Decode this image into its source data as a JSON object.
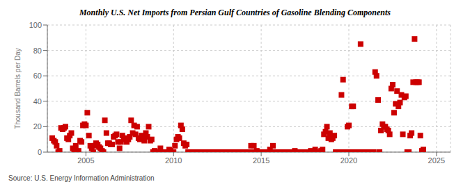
{
  "chart_data": {
    "type": "scatter",
    "title": "Monthly U.S. Net Imports from Persian Gulf Countries of Gasoline Blending Components",
    "ylabel": "Thousand Barrels per Day",
    "annotation": "Source: U.S. Energy Information Administration",
    "color": "#cc0000",
    "marker": "square",
    "grid": true,
    "ylim": [
      0,
      100
    ],
    "yticks": [
      0,
      20,
      40,
      60,
      80,
      100
    ],
    "xlim": [
      2002.8,
      2025.8
    ],
    "xticks": [
      2005,
      2010,
      2015,
      2020,
      2025
    ],
    "x": [
      2003.08,
      2003.17,
      2003.25,
      2003.33,
      2003.42,
      2003.5,
      2003.58,
      2003.67,
      2003.75,
      2003.83,
      2003.92,
      2004.0,
      2004.08,
      2004.17,
      2004.25,
      2004.33,
      2004.42,
      2004.5,
      2004.58,
      2004.67,
      2004.75,
      2004.83,
      2004.92,
      2005.0,
      2005.08,
      2005.17,
      2005.25,
      2005.33,
      2005.42,
      2005.5,
      2005.58,
      2005.67,
      2005.75,
      2005.83,
      2005.92,
      2006.0,
      2006.08,
      2006.17,
      2006.25,
      2006.33,
      2006.42,
      2006.5,
      2006.58,
      2006.67,
      2006.75,
      2006.83,
      2006.92,
      2007.0,
      2007.08,
      2007.17,
      2007.25,
      2007.33,
      2007.42,
      2007.5,
      2007.58,
      2007.67,
      2007.75,
      2007.83,
      2007.92,
      2008.0,
      2008.08,
      2008.17,
      2008.25,
      2008.33,
      2008.42,
      2008.5,
      2008.58,
      2008.67,
      2008.75,
      2008.83,
      2008.92,
      2009.0,
      2009.08,
      2009.17,
      2009.25,
      2009.33,
      2009.42,
      2009.5,
      2009.58,
      2009.67,
      2009.75,
      2009.83,
      2009.92,
      2010.0,
      2010.08,
      2010.17,
      2010.25,
      2010.33,
      2010.42,
      2010.5,
      2010.58,
      2010.67,
      2010.75,
      2010.83,
      2010.92,
      2011.0,
      2011.08,
      2011.17,
      2011.25,
      2011.33,
      2011.42,
      2011.5,
      2011.58,
      2011.67,
      2011.75,
      2011.83,
      2011.92,
      2012.0,
      2012.08,
      2012.17,
      2012.25,
      2012.33,
      2012.42,
      2012.5,
      2012.58,
      2012.67,
      2012.75,
      2012.83,
      2012.92,
      2013.0,
      2013.08,
      2013.17,
      2013.25,
      2013.33,
      2013.42,
      2013.5,
      2013.58,
      2013.67,
      2013.75,
      2013.83,
      2013.92,
      2014.0,
      2014.08,
      2014.17,
      2014.25,
      2014.33,
      2014.42,
      2014.5,
      2014.58,
      2014.67,
      2014.75,
      2014.83,
      2014.92,
      2015.0,
      2015.08,
      2015.17,
      2015.25,
      2015.33,
      2015.42,
      2015.5,
      2015.58,
      2015.67,
      2015.75,
      2015.83,
      2015.92,
      2016.0,
      2016.08,
      2016.17,
      2016.25,
      2016.33,
      2016.42,
      2016.5,
      2016.58,
      2016.67,
      2016.75,
      2016.83,
      2016.92,
      2017.0,
      2017.08,
      2017.17,
      2017.25,
      2017.33,
      2017.42,
      2017.5,
      2017.58,
      2017.67,
      2017.75,
      2017.83,
      2017.92,
      2018.0,
      2018.08,
      2018.17,
      2018.25,
      2018.33,
      2018.42,
      2018.5,
      2018.58,
      2018.67,
      2018.75,
      2018.83,
      2018.92,
      2019.0,
      2019.08,
      2019.17,
      2019.25,
      2019.33,
      2019.42,
      2019.5,
      2019.58,
      2019.67,
      2019.75,
      2019.83,
      2019.92,
      2020.0,
      2020.08,
      2020.17,
      2020.25,
      2020.33,
      2020.42,
      2020.5,
      2020.58,
      2020.67,
      2020.75,
      2020.83,
      2020.92,
      2021.0,
      2021.08,
      2021.17,
      2021.25,
      2021.33,
      2021.42,
      2021.5,
      2021.58,
      2021.67,
      2021.75,
      2021.83,
      2021.92,
      2022.0,
      2022.08,
      2022.17,
      2022.25,
      2022.33,
      2022.42,
      2022.5,
      2022.58,
      2022.67,
      2022.75,
      2022.83,
      2022.92,
      2023.0,
      2023.08,
      2023.17,
      2023.25,
      2023.33,
      2023.42,
      2023.5,
      2023.58,
      2023.67,
      2023.75,
      2023.83,
      2023.92,
      2024.0,
      2024.08,
      2024.17,
      2024.25
    ],
    "values": [
      11,
      9,
      8,
      5,
      0,
      1,
      19,
      18,
      19,
      20,
      11,
      10,
      13,
      15,
      3,
      2,
      5,
      0,
      1,
      9,
      8,
      21,
      22,
      21,
      31,
      13,
      5,
      3,
      0,
      5,
      7,
      6,
      4,
      3,
      1,
      0,
      25,
      15,
      7,
      7,
      6,
      6,
      12,
      13,
      14,
      8,
      3,
      8,
      13,
      10,
      11,
      8,
      10,
      12,
      25,
      15,
      21,
      14,
      20,
      11,
      10,
      13,
      11,
      9,
      15,
      12,
      20,
      9,
      10,
      0,
      1,
      0,
      0,
      0,
      3,
      0,
      0,
      0,
      0,
      0,
      2,
      1,
      0,
      0,
      5,
      10,
      12,
      11,
      21,
      18,
      7,
      5,
      6,
      0,
      0,
      0,
      0,
      0,
      0,
      0,
      0,
      0,
      0,
      0,
      0,
      0,
      0,
      0,
      0,
      0,
      0,
      0,
      0,
      0,
      0,
      0,
      0,
      0,
      0,
      0,
      0,
      0,
      0,
      0,
      0,
      0,
      0,
      0,
      0,
      0,
      0,
      0,
      0,
      0,
      0,
      0,
      5,
      0,
      5,
      0,
      1,
      0,
      0,
      0,
      0,
      0,
      0,
      0,
      0,
      2,
      0,
      5,
      0,
      0,
      0,
      0,
      0,
      0,
      0,
      0,
      0,
      0,
      0,
      0,
      0,
      0,
      1,
      0,
      0,
      0,
      0,
      0,
      0,
      0,
      0,
      0,
      0,
      1,
      0,
      0,
      2,
      0,
      0,
      0,
      1,
      2,
      14,
      16,
      20,
      11,
      15,
      10,
      11,
      13,
      0,
      0,
      0,
      0,
      45,
      57,
      0,
      0,
      20,
      21,
      0,
      36,
      36,
      0,
      0,
      0,
      0,
      85,
      0,
      0,
      0,
      0,
      0,
      0,
      0,
      0,
      0,
      63,
      60,
      41,
      0,
      17,
      22,
      20,
      20,
      18,
      17,
      14,
      50,
      53,
      31,
      38,
      48,
      36,
      39,
      45,
      14,
      43,
      44,
      0,
      0,
      13,
      15,
      55,
      89,
      55,
      55,
      55,
      13,
      1,
      2
    ]
  }
}
